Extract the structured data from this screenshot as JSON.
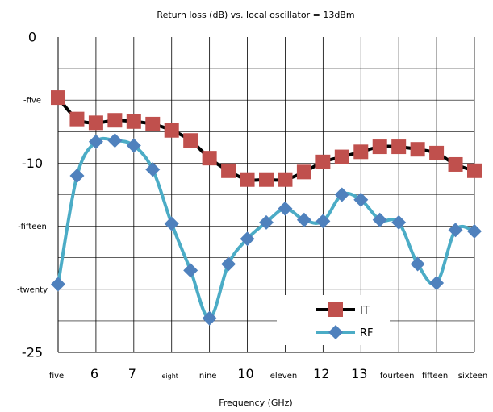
{
  "chart_data": {
    "type": "line",
    "title": "Return loss (dB) vs. local oscillator = 13dBm",
    "xlabel": "Frequency (GHz)",
    "ylabel": "",
    "xlim": [
      5,
      16
    ],
    "ylim": [
      -25,
      0
    ],
    "x_ticks": [
      {
        "value": 5,
        "label": "five",
        "size": "small"
      },
      {
        "value": 6,
        "label": "6",
        "size": "large"
      },
      {
        "value": 7,
        "label": "7",
        "size": "large"
      },
      {
        "value": 8,
        "label": "eight",
        "size": "tiny"
      },
      {
        "value": 9,
        "label": "nine",
        "size": "small"
      },
      {
        "value": 10,
        "label": "10",
        "size": "large"
      },
      {
        "value": 11,
        "label": "eleven",
        "size": "small"
      },
      {
        "value": 12,
        "label": "12",
        "size": "large"
      },
      {
        "value": 13,
        "label": "13",
        "size": "large"
      },
      {
        "value": 14,
        "label": "fourteen",
        "size": "small"
      },
      {
        "value": 15,
        "label": "fifteen",
        "size": "small"
      },
      {
        "value": 16,
        "label": "sixteen",
        "size": "small"
      }
    ],
    "y_ticks": [
      {
        "value": 0,
        "label": "0",
        "size": "large"
      },
      {
        "value": -5,
        "label": "-five",
        "size": "small"
      },
      {
        "value": -10,
        "label": "-10",
        "size": "large"
      },
      {
        "value": -15,
        "label": "-fifteen",
        "size": "small"
      },
      {
        "value": -20,
        "label": "-twenty",
        "size": "small"
      },
      {
        "value": -25,
        "label": "-25",
        "size": "large"
      }
    ],
    "grid": true,
    "legend_position": "bottom-right",
    "series": [
      {
        "name": "IT",
        "color": "#000000",
        "marker_color": "#c0504d",
        "marker": "square",
        "x": [
          5,
          5.5,
          6,
          6.5,
          7,
          7.5,
          8,
          8.5,
          9,
          9.5,
          10,
          10.5,
          11,
          11.5,
          12,
          12.5,
          13,
          13.5,
          14,
          14.5,
          15,
          15.5,
          16
        ],
        "y": [
          -4.8,
          -6.5,
          -6.8,
          -6.6,
          -6.7,
          -6.9,
          -7.4,
          -8.2,
          -9.6,
          -10.6,
          -11.3,
          -11.3,
          -11.3,
          -10.7,
          -9.9,
          -9.5,
          -9.1,
          -8.7,
          -8.7,
          -8.9,
          -9.2,
          -10.1,
          -10.6
        ]
      },
      {
        "name": "RF",
        "color": "#4bacc6",
        "marker_color": "#4f81bd",
        "marker": "diamond",
        "x": [
          5,
          5.5,
          6,
          6.5,
          7,
          7.5,
          8,
          8.5,
          9,
          9.5,
          10,
          10.5,
          11,
          11.5,
          12,
          12.5,
          13,
          13.5,
          14,
          14.5,
          15,
          15.5,
          16
        ],
        "y": [
          -19.6,
          -11.0,
          -8.3,
          -8.2,
          -8.6,
          -10.5,
          -14.8,
          -18.5,
          -22.3,
          -18.0,
          -16.0,
          -14.7,
          -13.6,
          -14.5,
          -14.6,
          -12.5,
          -12.9,
          -14.5,
          -14.7,
          -18.0,
          -19.5,
          -15.3,
          -15.4
        ]
      }
    ]
  }
}
